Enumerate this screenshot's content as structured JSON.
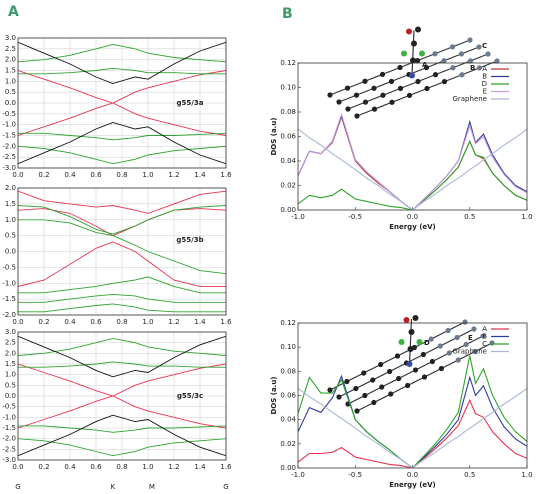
{
  "panel_labels": [
    "A",
    "B"
  ],
  "chart_data": [
    {
      "type": "line",
      "label": "g55/3a",
      "grid": true,
      "x": [
        0,
        0.2,
        0.4,
        0.6,
        0.73,
        0.9,
        1.0,
        1.2,
        1.4,
        1.6
      ],
      "xlim": [
        0,
        1.6
      ],
      "ylim": [
        -3,
        3
      ],
      "xticks": [
        {
          "value": 0,
          "label": "0.0"
        },
        0.2,
        0.4,
        0.6,
        0.8,
        {
          "value": 1,
          "label": "1.0"
        },
        1.2,
        1.4,
        1.6
      ],
      "yticks": [
        {
          "value": -3,
          "label": "-3.0"
        },
        -2.5,
        {
          "value": -2,
          "label": "-2.0"
        },
        -1.5,
        {
          "value": -1,
          "label": "-1.0"
        },
        -0.5,
        {
          "value": 0,
          "label": "0.0"
        },
        0.5,
        {
          "value": 1,
          "label": "1.0"
        },
        1.5,
        {
          "value": 2,
          "label": "2.0"
        },
        2.5,
        {
          "value": 3,
          "label": "3.0"
        }
      ],
      "series": [
        {
          "color": "#e8344f",
          "values": [
            1.5,
            1.1,
            0.7,
            0.25,
            0,
            0.5,
            0.7,
            1.0,
            1.3,
            1.5
          ]
        },
        {
          "color": "#e8344f",
          "values": [
            -1.5,
            -1.1,
            -0.7,
            -0.25,
            0,
            -0.5,
            -0.7,
            -1.0,
            -1.3,
            -1.5
          ]
        },
        {
          "color": "#2ea52e",
          "values": [
            1.35,
            1.35,
            1.4,
            1.5,
            1.6,
            1.5,
            1.4,
            1.4,
            1.35,
            1.35
          ]
        },
        {
          "color": "#2ea52e",
          "values": [
            1.9,
            2.0,
            2.2,
            2.5,
            2.7,
            2.5,
            2.3,
            2.1,
            2.0,
            1.9
          ]
        },
        {
          "color": "#2ea52e",
          "values": [
            -1.4,
            -1.4,
            -1.5,
            -1.6,
            -1.7,
            -1.6,
            -1.5,
            -1.5,
            -1.45,
            -1.4
          ]
        },
        {
          "color": "#2ea52e",
          "values": [
            -2.0,
            -2.1,
            -2.3,
            -2.6,
            -2.8,
            -2.6,
            -2.4,
            -2.2,
            -2.1,
            -2.0
          ]
        },
        {
          "color": "#111111",
          "values": [
            2.8,
            2.3,
            1.8,
            1.2,
            0.9,
            1.2,
            1.1,
            1.8,
            2.4,
            2.8
          ]
        },
        {
          "color": "#111111",
          "values": [
            -2.8,
            -2.3,
            -1.8,
            -1.2,
            -0.9,
            -1.2,
            -1.1,
            -1.8,
            -2.4,
            -2.8
          ]
        }
      ]
    },
    {
      "type": "line",
      "label": "g55/3b",
      "grid": true,
      "x": [
        0,
        0.2,
        0.4,
        0.6,
        0.73,
        0.9,
        1.0,
        1.2,
        1.4,
        1.6
      ],
      "xlim": [
        0,
        1.6
      ],
      "ylim": [
        -2,
        2
      ],
      "xticks": [
        {
          "value": 0,
          "label": "0.0"
        },
        0.2,
        0.4,
        0.6,
        0.8,
        {
          "value": 1,
          "label": "1.0"
        },
        1.2,
        1.4,
        1.6
      ],
      "yticks": [
        {
          "value": -2,
          "label": "-2.0"
        },
        -1.5,
        {
          "value": -1,
          "label": "-1.0"
        },
        -0.5,
        {
          "value": 0,
          "label": "0.0"
        },
        0.5,
        {
          "value": 1,
          "label": "1.0"
        },
        1.5,
        {
          "value": 2,
          "label": "2.0"
        }
      ],
      "series": [
        {
          "color": "#e8344f",
          "values": [
            1.3,
            1.35,
            1.2,
            0.8,
            0.5,
            0.8,
            1.0,
            1.3,
            1.35,
            1.3
          ]
        },
        {
          "color": "#e8344f",
          "values": [
            -1.1,
            -0.9,
            -0.4,
            0.1,
            0.3,
            0.0,
            -0.3,
            -0.9,
            -1.1,
            -1.1
          ]
        },
        {
          "color": "#e8344f",
          "values": [
            1.9,
            1.6,
            1.5,
            1.4,
            1.45,
            1.3,
            1.2,
            1.5,
            1.8,
            1.9
          ]
        },
        {
          "color": "#2ea52e",
          "values": [
            1.45,
            1.4,
            1.1,
            0.7,
            0.55,
            0.8,
            1.0,
            1.3,
            1.4,
            1.45
          ]
        },
        {
          "color": "#2ea52e",
          "values": [
            1.0,
            1.0,
            0.9,
            0.6,
            0.5,
            0.2,
            0.0,
            -0.3,
            -0.6,
            -0.7
          ]
        },
        {
          "color": "#2ea52e",
          "values": [
            -1.3,
            -1.3,
            -1.2,
            -1.1,
            -1.0,
            -0.9,
            -0.8,
            -1.1,
            -1.3,
            -1.3
          ]
        },
        {
          "color": "#2ea52e",
          "values": [
            -1.6,
            -1.6,
            -1.5,
            -1.4,
            -1.35,
            -1.4,
            -1.5,
            -1.6,
            -1.6,
            -1.6
          ]
        },
        {
          "color": "#2ea52e",
          "values": [
            -1.9,
            -1.9,
            -1.8,
            -1.7,
            -1.65,
            -1.75,
            -1.85,
            -1.9,
            -1.9,
            -1.9
          ]
        }
      ]
    },
    {
      "type": "line",
      "label": "g55/3c",
      "grid": true,
      "x": [
        0,
        0.2,
        0.4,
        0.6,
        0.73,
        0.9,
        1.0,
        1.2,
        1.4,
        1.6
      ],
      "xlim": [
        0,
        1.6
      ],
      "ylim": [
        -3,
        3
      ],
      "xticks": [
        {
          "value": 0,
          "label": "0.0"
        },
        0.2,
        0.4,
        0.6,
        0.8,
        {
          "value": 1,
          "label": "1.0"
        },
        1.2,
        1.4,
        1.6
      ],
      "yticks": [
        {
          "value": -3,
          "label": "-3.0"
        },
        -2.5,
        {
          "value": -2,
          "label": "-2.0"
        },
        -1.5,
        {
          "value": -1,
          "label": "-1.0"
        },
        -0.5,
        {
          "value": 0,
          "label": "0.0"
        },
        0.5,
        {
          "value": 1,
          "label": "1.0"
        },
        1.5,
        {
          "value": 2,
          "label": "2.0"
        },
        2.5,
        {
          "value": 3,
          "label": "3.0"
        }
      ],
      "k_points": [
        {
          "value": 0,
          "label": "G"
        },
        {
          "value": 0.73,
          "label": "K"
        },
        {
          "value": 1.03,
          "label": "M"
        },
        {
          "value": 1.6,
          "label": "G"
        }
      ],
      "series": [
        {
          "color": "#e8344f",
          "values": [
            1.5,
            1.1,
            0.7,
            0.25,
            0,
            0.5,
            0.7,
            1.0,
            1.3,
            1.5
          ]
        },
        {
          "color": "#e8344f",
          "values": [
            -1.5,
            -1.1,
            -0.7,
            -0.25,
            0,
            -0.5,
            -0.7,
            -1.0,
            -1.3,
            -1.5
          ]
        },
        {
          "color": "#2ea52e",
          "values": [
            1.35,
            1.35,
            1.4,
            1.5,
            1.6,
            1.5,
            1.4,
            1.4,
            1.35,
            1.35
          ]
        },
        {
          "color": "#2ea52e",
          "values": [
            1.9,
            2.0,
            2.2,
            2.5,
            2.7,
            2.5,
            2.3,
            2.1,
            2.0,
            1.9
          ]
        },
        {
          "color": "#2ea52e",
          "values": [
            -1.4,
            -1.4,
            -1.5,
            -1.6,
            -1.7,
            -1.6,
            -1.5,
            -1.5,
            -1.45,
            -1.4
          ]
        },
        {
          "color": "#2ea52e",
          "values": [
            -2.0,
            -2.1,
            -2.3,
            -2.6,
            -2.8,
            -2.6,
            -2.4,
            -2.2,
            -2.1,
            -2.0
          ]
        },
        {
          "color": "#111111",
          "values": [
            2.8,
            2.3,
            1.8,
            1.2,
            0.9,
            1.2,
            1.1,
            1.8,
            2.4,
            2.8
          ]
        },
        {
          "color": "#111111",
          "values": [
            -2.8,
            -2.3,
            -1.8,
            -1.2,
            -0.9,
            -1.2,
            -1.1,
            -1.8,
            -2.4,
            -2.8
          ]
        }
      ]
    },
    {
      "type": "line",
      "grid": false,
      "legend": "upper right",
      "xlabel": "Energy (eV)",
      "ylabel": "DOS (a.u)",
      "annotations": [
        "C",
        "B",
        "A"
      ],
      "x": [
        -1,
        -0.9,
        -0.8,
        -0.7,
        -0.62,
        -0.5,
        -0.4,
        -0.3,
        -0.2,
        -0.1,
        0,
        0.1,
        0.2,
        0.3,
        0.4,
        0.5,
        0.55,
        0.62,
        0.7,
        0.8,
        0.9,
        1.0
      ],
      "xlim": [
        -1,
        1
      ],
      "ylim": [
        0,
        0.12
      ],
      "xticks": [
        {
          "value": -1,
          "label": "-1.0"
        },
        -0.5,
        {
          "value": 0,
          "label": "0.0"
        },
        0.5,
        {
          "value": 1,
          "label": "1.0"
        }
      ],
      "yticks": [
        {
          "value": 0,
          "label": "0.00"
        },
        {
          "value": 0.02,
          "label": "0.02"
        },
        {
          "value": 0.04,
          "label": "0.04"
        },
        {
          "value": 0.06,
          "label": "0.06"
        },
        {
          "value": 0.08,
          "label": "0.08"
        },
        {
          "value": 0.1,
          "label": "0.10"
        },
        {
          "value": 0.12,
          "label": "0.12"
        }
      ],
      "series": [
        {
          "name": "A",
          "color": "#c0392b",
          "values": [
            0.028,
            0.048,
            0.046,
            0.055,
            0.076,
            0.04,
            0.03,
            0.022,
            0.015,
            0.007,
            0,
            0.008,
            0.016,
            0.025,
            0.035,
            0.056,
            0.045,
            0.042,
            0.03,
            0.02,
            0.012,
            0.008
          ]
        },
        {
          "name": "B",
          "color": "#2c3e9e",
          "values": [
            0.028,
            0.048,
            0.046,
            0.056,
            0.077,
            0.041,
            0.031,
            0.023,
            0.015,
            0.007,
            0,
            0.009,
            0.018,
            0.028,
            0.04,
            0.072,
            0.055,
            0.062,
            0.045,
            0.03,
            0.02,
            0.015
          ]
        },
        {
          "name": "D",
          "color": "#2ea52e",
          "values": [
            0.005,
            0.012,
            0.01,
            0.012,
            0.017,
            0.009,
            0.007,
            0.005,
            0.003,
            0.002,
            0,
            0.008,
            0.016,
            0.025,
            0.035,
            0.056,
            0.045,
            0.043,
            0.03,
            0.02,
            0.012,
            0.008
          ]
        },
        {
          "name": "E",
          "color": "#c79ad8",
          "values": [
            0.028,
            0.048,
            0.046,
            0.056,
            0.078,
            0.041,
            0.031,
            0.023,
            0.015,
            0.007,
            0,
            0.009,
            0.018,
            0.028,
            0.04,
            0.069,
            0.054,
            0.06,
            0.043,
            0.029,
            0.019,
            0.014
          ]
        },
        {
          "name": "Graphene",
          "color": "#a9b8d6",
          "values": [
            0.066,
            0.059,
            0.053,
            0.046,
            0.041,
            0.033,
            0.026,
            0.02,
            0.013,
            0.007,
            0,
            0.007,
            0.013,
            0.02,
            0.026,
            0.033,
            0.036,
            0.041,
            0.046,
            0.053,
            0.059,
            0.066
          ]
        }
      ]
    },
    {
      "type": "line",
      "grid": false,
      "legend": "upper right",
      "xlabel": "Energy (eV)",
      "ylabel": "DOS (a.u)",
      "annotations": [
        "E",
        "D"
      ],
      "x": [
        -1,
        -0.9,
        -0.8,
        -0.7,
        -0.62,
        -0.5,
        -0.4,
        -0.3,
        -0.2,
        -0.1,
        0,
        0.1,
        0.2,
        0.3,
        0.4,
        0.5,
        0.55,
        0.62,
        0.7,
        0.8,
        0.9,
        1.0
      ],
      "xlim": [
        -1,
        1
      ],
      "ylim": [
        0,
        0.12
      ],
      "xticks": [
        {
          "value": -1,
          "label": "-1.0"
        },
        -0.5,
        {
          "value": 0,
          "label": "0.0"
        },
        0.5,
        {
          "value": 1,
          "label": "1.0"
        }
      ],
      "yticks": [
        {
          "value": 0,
          "label": "0.00"
        },
        {
          "value": 0.02,
          "label": "0.02"
        },
        {
          "value": 0.04,
          "label": "0.04"
        },
        {
          "value": 0.06,
          "label": "0.06"
        },
        {
          "value": 0.08,
          "label": "0.08"
        },
        {
          "value": 0.1,
          "label": "0.10"
        },
        {
          "value": 0.12,
          "label": "0.12"
        }
      ],
      "series": [
        {
          "name": "A",
          "color": "#e8344f",
          "values": [
            0.005,
            0.012,
            0.012,
            0.013,
            0.017,
            0.009,
            0.007,
            0.005,
            0.003,
            0.002,
            0,
            0.008,
            0.016,
            0.025,
            0.035,
            0.056,
            0.045,
            0.042,
            0.03,
            0.02,
            0.012,
            0.008
          ]
        },
        {
          "name": "B",
          "color": "#2c3e9e",
          "values": [
            0.03,
            0.05,
            0.046,
            0.058,
            0.076,
            0.04,
            0.03,
            0.022,
            0.015,
            0.007,
            0,
            0.009,
            0.018,
            0.028,
            0.04,
            0.075,
            0.06,
            0.068,
            0.05,
            0.034,
            0.024,
            0.018
          ]
        },
        {
          "name": "C",
          "color": "#2ea52e",
          "values": [
            0.045,
            0.075,
            0.062,
            0.062,
            0.073,
            0.04,
            0.03,
            0.022,
            0.015,
            0.007,
            0,
            0.01,
            0.02,
            0.032,
            0.046,
            0.093,
            0.07,
            0.082,
            0.06,
            0.042,
            0.03,
            0.022
          ]
        },
        {
          "name": "Graphene",
          "color": "#a9b8d6",
          "values": [
            0.066,
            0.059,
            0.053,
            0.046,
            0.041,
            0.033,
            0.026,
            0.02,
            0.013,
            0.007,
            0,
            0.007,
            0.013,
            0.02,
            0.026,
            0.033,
            0.036,
            0.041,
            0.046,
            0.053,
            0.059,
            0.066
          ]
        }
      ]
    }
  ]
}
